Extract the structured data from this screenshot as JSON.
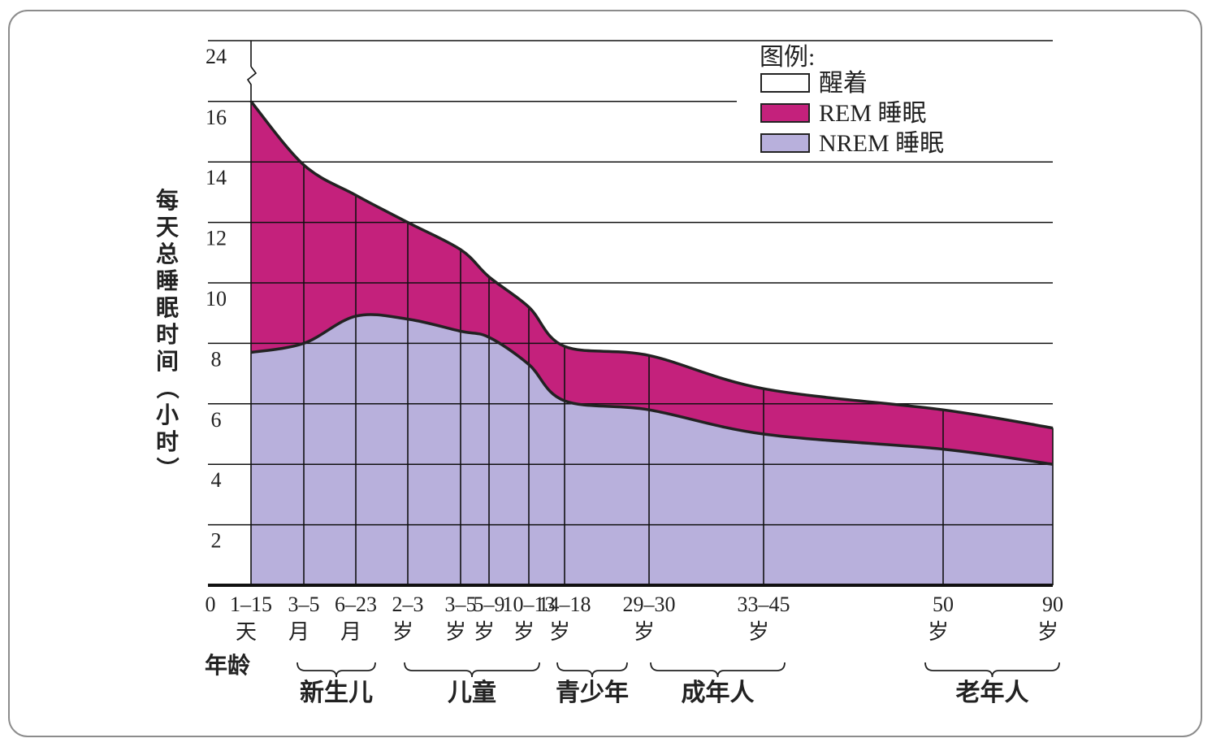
{
  "chart_data": {
    "type": "area",
    "title": "",
    "ylabel": "每天总睡眠时间（小时）",
    "xlabel": "年龄",
    "ylim": [
      0,
      24
    ],
    "y_axis_break": "between 16 and 24",
    "y_ticks": [
      "2",
      "4",
      "6",
      "8",
      "10",
      "12",
      "14",
      "16",
      "24"
    ],
    "x_origin_label": "0",
    "categories": [
      {
        "top": "1–15",
        "bottom": "天"
      },
      {
        "top": "3–5",
        "bottom": "月"
      },
      {
        "top": "6–23",
        "bottom": "月"
      },
      {
        "top": "2–3",
        "bottom": "岁"
      },
      {
        "top": "3–5",
        "bottom": "岁"
      },
      {
        "top": "5–9",
        "bottom": "岁"
      },
      {
        "top": "10–13",
        "bottom": "岁"
      },
      {
        "top": "14–18",
        "bottom": "岁"
      },
      {
        "top": "29–30",
        "bottom": "岁"
      },
      {
        "top": "33–45",
        "bottom": "岁"
      },
      {
        "top": "50",
        "bottom": "岁"
      },
      {
        "top": "90",
        "bottom": "岁"
      }
    ],
    "series": [
      {
        "name": "NREM 睡眠",
        "color": "#b8b0dc",
        "values": [
          7.7,
          8.0,
          8.9,
          8.8,
          8.4,
          8.2,
          7.3,
          6.1,
          5.8,
          5.0,
          4.5,
          4.0
        ]
      },
      {
        "name": "REM 睡眠",
        "color": "#c4217c",
        "values": [
          8.3,
          5.9,
          4.0,
          3.2,
          2.7,
          2.0,
          1.9,
          1.8,
          1.8,
          1.5,
          1.3,
          1.2
        ]
      },
      {
        "name": "醒着",
        "color": "#ffffff"
      }
    ],
    "total_sleep": [
      16.0,
      13.9,
      12.9,
      12.0,
      11.1,
      10.2,
      9.2,
      7.9,
      7.6,
      6.5,
      5.8,
      5.2
    ],
    "age_groups": [
      {
        "label": "新生儿"
      },
      {
        "label": "儿童"
      },
      {
        "label": "青少年"
      },
      {
        "label": "成年人"
      },
      {
        "label": "老年人"
      }
    ],
    "legend": {
      "title": "图例:",
      "position": "top-right"
    },
    "grid": true
  }
}
